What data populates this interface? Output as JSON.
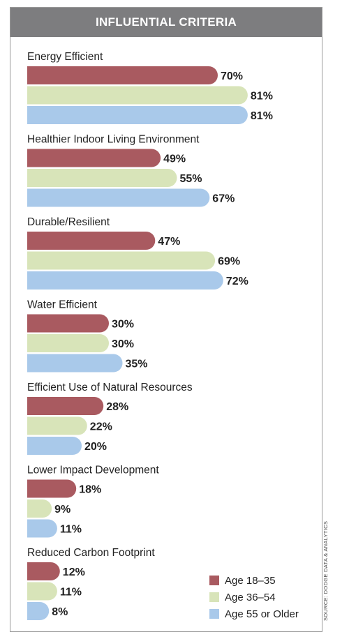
{
  "title": "INFLUENTIAL CRITERIA",
  "source_note": "SOURCE: DODGE DATA & ANALYTICS",
  "colors": {
    "title_bar": "#7d7d7f",
    "age_18_35": "#a95a60",
    "age_36_54": "#d8e4b9",
    "age_55_plus": "#a9c9ea"
  },
  "chart_data": {
    "type": "bar",
    "orientation": "horizontal",
    "title": "INFLUENTIAL CRITERIA",
    "categories": [
      "Energy Efficient",
      "Healthier Indoor Living Environment",
      "Durable/Resilient",
      "Water Efficient",
      "Efficient Use of Natural Resources",
      "Lower Impact Development",
      "Reduced Carbon Footprint"
    ],
    "series": [
      {
        "name": "Age 18–35",
        "color": "#a95a60",
        "values": [
          70,
          49,
          47,
          30,
          28,
          18,
          12
        ]
      },
      {
        "name": "Age 36–54",
        "color": "#d8e4b9",
        "values": [
          81,
          55,
          69,
          30,
          22,
          9,
          11
        ]
      },
      {
        "name": "Age 55 or Older",
        "color": "#a9c9ea",
        "values": [
          81,
          67,
          72,
          35,
          20,
          11,
          8
        ]
      }
    ],
    "value_suffix": "%",
    "xlim": [
      0,
      100
    ],
    "legend_position": "bottom-right",
    "grid": false
  }
}
